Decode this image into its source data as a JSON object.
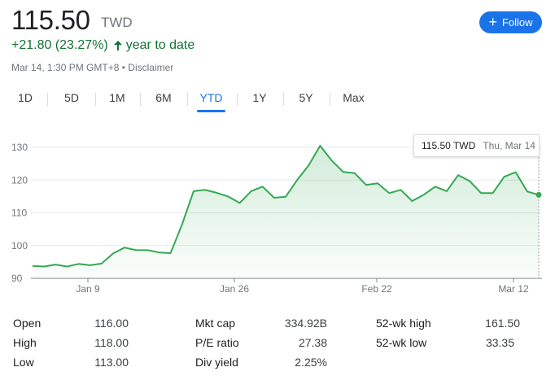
{
  "quote": {
    "price": "115.50",
    "currency": "TWD",
    "change": "+21.80 (23.27%)",
    "period": "year to date",
    "timestamp": "Mar 14, 1:30 PM GMT+8",
    "separator": "•",
    "disclaimer": "Disclaimer"
  },
  "follow_button": {
    "label": "Follow",
    "color": "#1a73e8"
  },
  "tabs": [
    "1D",
    "5D",
    "1M",
    "6M",
    "YTD",
    "1Y",
    "5Y",
    "Max"
  ],
  "active_tab": "YTD",
  "tooltip": {
    "price": "115.50 TWD",
    "date": "Thu, Mar 14"
  },
  "chart_data": {
    "type": "area",
    "color": "#34a853",
    "y_ticks": [
      "130",
      "120",
      "110",
      "100",
      "90"
    ],
    "ylim": [
      90,
      130
    ],
    "x_ticks": [
      "Jan 9",
      "Jan 26",
      "Feb 22",
      "Mar 12"
    ],
    "grid": true,
    "series": [
      {
        "values": [
          93.8,
          93.6,
          94.2,
          93.6,
          94.4,
          94.0,
          94.5,
          97.6,
          99.4,
          98.6,
          98.6,
          97.9,
          97.7,
          106.5,
          116.6,
          117.0,
          116.1,
          115.0,
          113.0,
          116.6,
          118.0,
          114.6,
          114.9,
          120.0,
          124.5,
          130.5,
          126.0,
          122.5,
          122.1,
          118.5,
          119.0,
          116.0,
          117.0,
          113.6,
          115.5,
          118.0,
          116.6,
          121.5,
          119.7,
          116.0,
          116.0,
          121.0,
          122.4,
          116.5,
          115.5
        ]
      }
    ]
  },
  "stats": [
    {
      "label": "Open",
      "value": "116.00"
    },
    {
      "label": "High",
      "value": "118.00"
    },
    {
      "label": "Low",
      "value": "113.00"
    },
    {
      "label": "Mkt cap",
      "value": "334.92B"
    },
    {
      "label": "P/E ratio",
      "value": "27.38"
    },
    {
      "label": "Div yield",
      "value": "2.25%"
    },
    {
      "label": "52-wk high",
      "value": "161.50"
    },
    {
      "label": "52-wk low",
      "value": "33.35"
    }
  ]
}
